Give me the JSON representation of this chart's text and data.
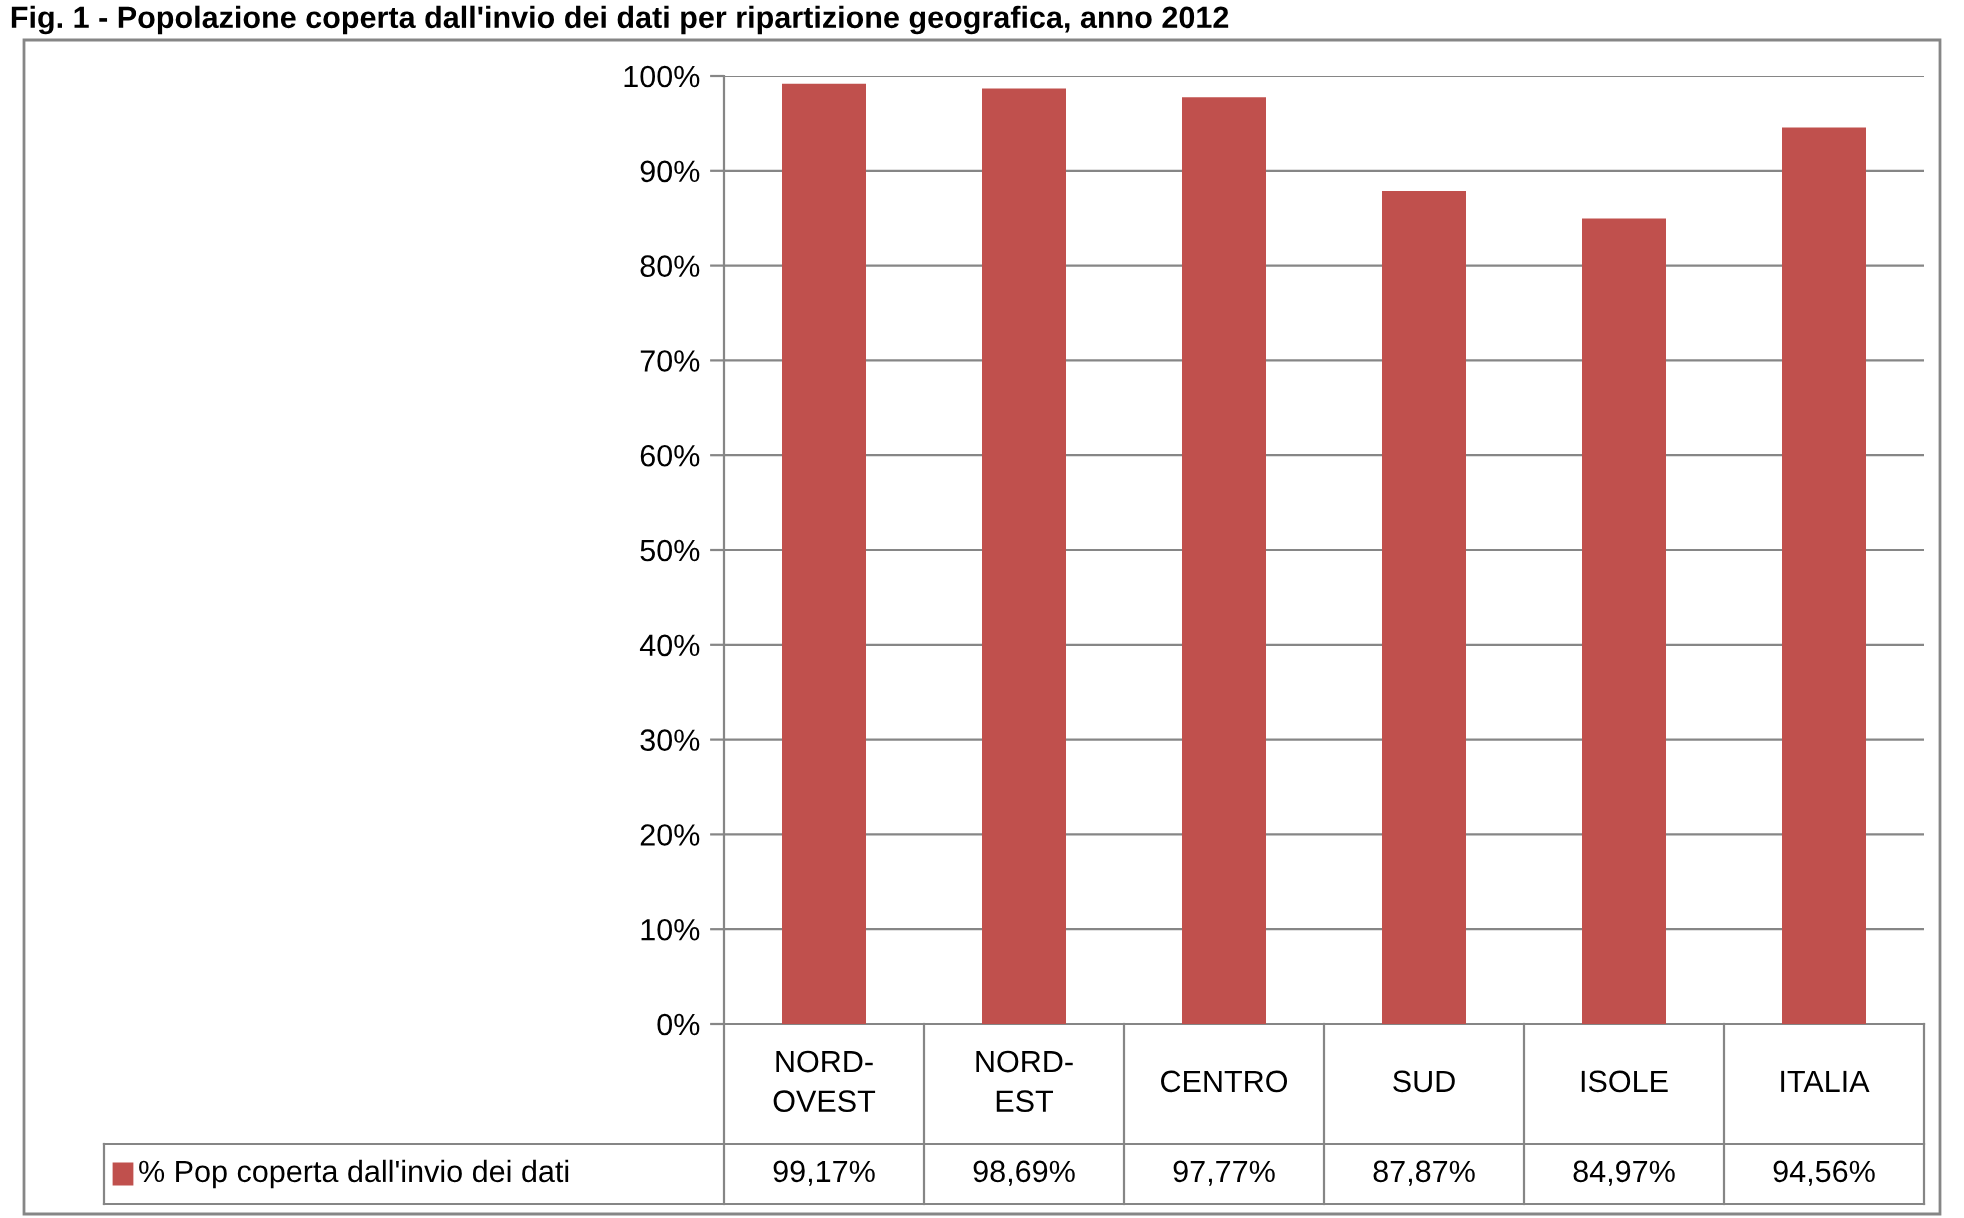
{
  "chart_data": {
    "type": "bar",
    "title": "Fig. 1 - Popolazione coperta dall'invio dei dati per ripartizione geografica, anno 2012",
    "categories": [
      "NORD-OVEST",
      "NORD-EST",
      "CENTRO",
      "SUD",
      "ISOLE",
      "ITALIA"
    ],
    "series": [
      {
        "name": "% Pop coperta dall'invio dei dati",
        "color": "#c0504d",
        "values": [
          99.17,
          98.69,
          97.77,
          87.87,
          84.97,
          94.56
        ],
        "value_labels": [
          "99,17%",
          "98,69%",
          "97,77%",
          "87,87%",
          "84,97%",
          "94,56%"
        ]
      }
    ],
    "ylim": [
      0,
      100
    ],
    "yticks": [
      {
        "value": 0,
        "label": "0%"
      },
      {
        "value": 10,
        "label": "10%"
      },
      {
        "value": 20,
        "label": "20%"
      },
      {
        "value": 30,
        "label": "30%"
      },
      {
        "value": 40,
        "label": "40%"
      },
      {
        "value": 50,
        "label": "50%"
      },
      {
        "value": 60,
        "label": "60%"
      },
      {
        "value": 70,
        "label": "70%"
      },
      {
        "value": 80,
        "label": "80%"
      },
      {
        "value": 90,
        "label": "90%"
      },
      {
        "value": 100,
        "label": "100%"
      }
    ],
    "grid": "y",
    "legend": "bottom left"
  }
}
